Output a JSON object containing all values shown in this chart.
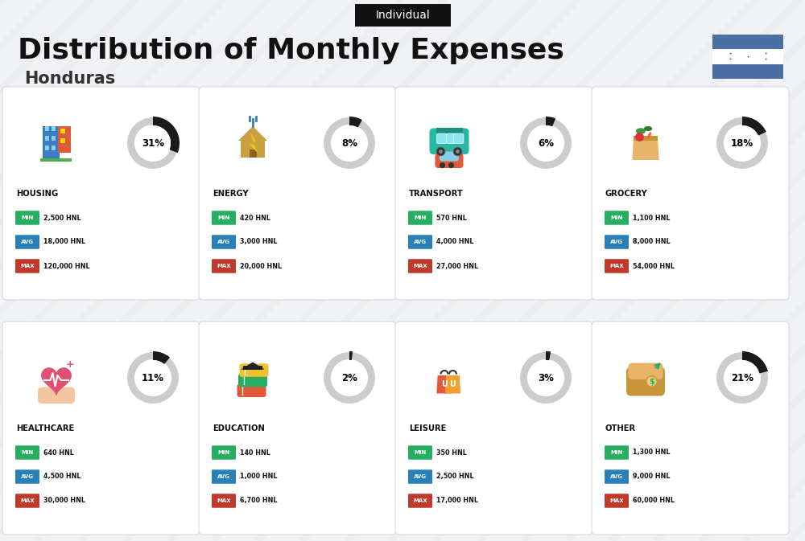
{
  "title": "Distribution of Monthly Expenses",
  "subtitle": "Individual",
  "country": "Honduras",
  "background_color": "#f0f2f5",
  "title_fontsize": 26,
  "subtitle_fontsize": 10,
  "country_fontsize": 15,
  "categories": [
    {
      "name": "HOUSING",
      "pct": 31,
      "min_val": "2,500 HNL",
      "avg_val": "18,000 HNL",
      "max_val": "120,000 HNL",
      "col": 0,
      "row": 0
    },
    {
      "name": "ENERGY",
      "pct": 8,
      "min_val": "420 HNL",
      "avg_val": "3,000 HNL",
      "max_val": "20,000 HNL",
      "col": 1,
      "row": 0
    },
    {
      "name": "TRANSPORT",
      "pct": 6,
      "min_val": "570 HNL",
      "avg_val": "4,000 HNL",
      "max_val": "27,000 HNL",
      "col": 2,
      "row": 0
    },
    {
      "name": "GROCERY",
      "pct": 18,
      "min_val": "1,100 HNL",
      "avg_val": "8,000 HNL",
      "max_val": "54,000 HNL",
      "col": 3,
      "row": 0
    },
    {
      "name": "HEALTHCARE",
      "pct": 11,
      "min_val": "640 HNL",
      "avg_val": "4,500 HNL",
      "max_val": "30,000 HNL",
      "col": 0,
      "row": 1
    },
    {
      "name": "EDUCATION",
      "pct": 2,
      "min_val": "140 HNL",
      "avg_val": "1,000 HNL",
      "max_val": "6,700 HNL",
      "col": 1,
      "row": 1
    },
    {
      "name": "LEISURE",
      "pct": 3,
      "min_val": "350 HNL",
      "avg_val": "2,500 HNL",
      "max_val": "17,000 HNL",
      "col": 2,
      "row": 1
    },
    {
      "name": "OTHER",
      "pct": 21,
      "min_val": "1,300 HNL",
      "avg_val": "9,000 HNL",
      "max_val": "60,000 HNL",
      "col": 3,
      "row": 1
    }
  ],
  "min_color": "#27ae60",
  "avg_color": "#2980b9",
  "max_color": "#c0392b",
  "donut_filled_color": "#1a1a1a",
  "donut_empty_color": "#cccccc",
  "flag_blue": "#4a6fa5",
  "flag_white": "#ffffff",
  "flag_star_color": "#4a6fa5",
  "cell_bg": "#ffffff",
  "stripe_color": "#e8eaed"
}
